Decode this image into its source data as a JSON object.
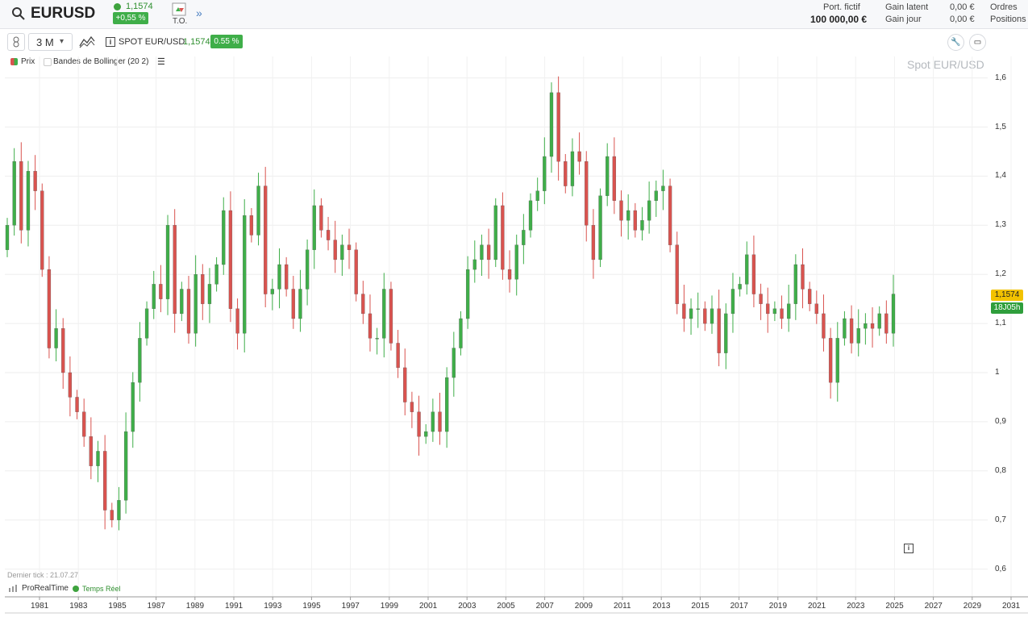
{
  "header": {
    "symbol": "EURUSD",
    "price": "1,1574",
    "change": "+0,55 %",
    "to_label": "T.O.",
    "portfolio_label": "Port. fictif",
    "portfolio_value": "100 000,00 €",
    "gain_latent_label": "Gain latent",
    "gain_jour_label": "Gain jour",
    "gain_latent_value": "0,00 €",
    "gain_jour_value": "0,00 €",
    "orders_label": "Ordres",
    "positions_label": "Positions"
  },
  "toolbar": {
    "timeframe": "3 M",
    "instrument": "SPOT EUR/USD",
    "instrument_price": "1,1574",
    "instrument_change": "0.55 %"
  },
  "legend": {
    "prix": "Prix",
    "bollinger": "Bandes de Bollinger (20 2)"
  },
  "watermark": "Spot EUR/USD",
  "price_tag": "1,1574",
  "countdown_tag": "18J05h",
  "footer": {
    "last_tick": "Dernier tick : 21.07.27",
    "brand": "ProRealTime",
    "realtime": "Temps Réel"
  },
  "colors": {
    "up": "#3fae49",
    "down": "#d9534f",
    "accent": "#f2c200"
  },
  "chart_data": {
    "type": "candlestick",
    "title": "Spot EUR/USD",
    "y_ticks": [
      "1,6",
      "1,5",
      "1,4",
      "1,3",
      "1,2",
      "1,1",
      "1",
      "0,9",
      "0,8",
      "0,7",
      "0,6"
    ],
    "x_ticks": [
      "1981",
      "1983",
      "1985",
      "1987",
      "1989",
      "1991",
      "1993",
      "1995",
      "1997",
      "1999",
      "2001",
      "2003",
      "2005",
      "2007",
      "2009",
      "2011",
      "2013",
      "2015",
      "2017",
      "2019",
      "2021",
      "2023",
      "2025",
      "2027",
      "2029",
      "2031"
    ],
    "ylim": [
      0.57,
      1.64
    ],
    "grid": true,
    "series": [
      {
        "closes": [
          1.3,
          1.43,
          1.29,
          1.41,
          1.37,
          1.21,
          1.05,
          1.09,
          1.0,
          0.95,
          0.92,
          0.87,
          0.81,
          0.84,
          0.72,
          0.7,
          0.74,
          0.88,
          0.98,
          1.07,
          1.13,
          1.18,
          1.15,
          1.3,
          1.12,
          1.17,
          1.08,
          1.2,
          1.14,
          1.18,
          1.22,
          1.33,
          1.13,
          1.08,
          1.32,
          1.28,
          1.38,
          1.16,
          1.17,
          1.22,
          1.17,
          1.11,
          1.17,
          1.25,
          1.34,
          1.29,
          1.27,
          1.23,
          1.26,
          1.25,
          1.16,
          1.12,
          1.07,
          1.07,
          1.17,
          1.06,
          1.01,
          0.94,
          0.92,
          0.87,
          0.88,
          0.92,
          0.88,
          0.99,
          1.05,
          1.11,
          1.21,
          1.23,
          1.26,
          1.23,
          1.34,
          1.21,
          1.19,
          1.26,
          1.29,
          1.35,
          1.37,
          1.44,
          1.57,
          1.43,
          1.38,
          1.45,
          1.43,
          1.3,
          1.23,
          1.36,
          1.44,
          1.35,
          1.31,
          1.33,
          1.29,
          1.31,
          1.35,
          1.37,
          1.38,
          1.26,
          1.14,
          1.11,
          1.13,
          1.13,
          1.1,
          1.13,
          1.04,
          1.12,
          1.17,
          1.18,
          1.24,
          1.16,
          1.14,
          1.12,
          1.13,
          1.11,
          1.14,
          1.22,
          1.17,
          1.14,
          1.12,
          1.07,
          0.98,
          1.07,
          1.11,
          1.06,
          1.09,
          1.1,
          1.09,
          1.12,
          1.08,
          1.16
        ],
        "timeframe_months": 3
      }
    ]
  }
}
